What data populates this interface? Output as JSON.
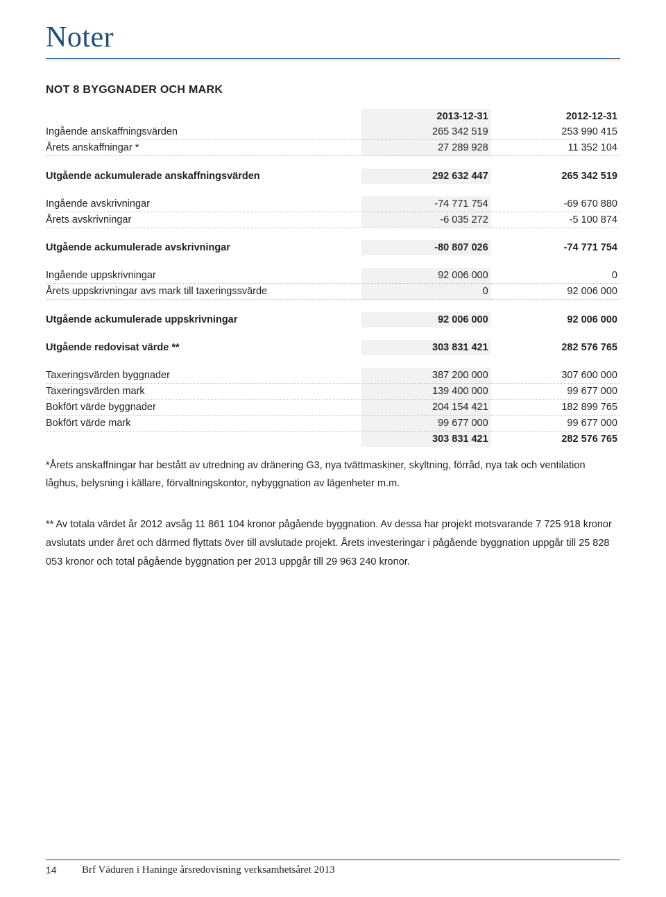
{
  "title": "Noter",
  "section_heading": "NOT 8 BYGGNADER OCH MARK",
  "headers": {
    "col1": "2013-12-31",
    "col2": "2012-12-31"
  },
  "rows": [
    {
      "label": "Ingående anskaffningsvärden",
      "c1": "265 342 519",
      "c2": "253 990 415",
      "style": "dotted"
    },
    {
      "label": "Årets anskaffningar *",
      "c1": "27 289 928",
      "c2": "11 352 104",
      "style": "dotted"
    },
    {
      "style": "spacer"
    },
    {
      "label": "Utgående ackumulerade anskaffningsvärden",
      "c1": "292 632 447",
      "c2": "265 342 519",
      "style": "bold"
    },
    {
      "style": "spacer"
    },
    {
      "label": "Ingående avskrivningar",
      "c1": "-74 771 754",
      "c2": "-69 670 880",
      "style": "dotted"
    },
    {
      "label": "Årets avskrivningar",
      "c1": "-6 035 272",
      "c2": "-5 100 874",
      "style": "dotted"
    },
    {
      "style": "spacer"
    },
    {
      "label": "Utgående ackumulerade avskrivningar",
      "c1": "-80 807 026",
      "c2": "-74 771 754",
      "style": "bold"
    },
    {
      "style": "spacer"
    },
    {
      "label": "Ingående uppskrivningar",
      "c1": "92 006 000",
      "c2": "0",
      "style": "dotted"
    },
    {
      "label": "Årets uppskrivningar avs mark till taxeringssvärde",
      "c1": "0",
      "c2": "92 006 000",
      "style": "dotted"
    },
    {
      "style": "spacer"
    },
    {
      "label": "Utgående ackumulerade uppskrivningar",
      "c1": "92 006 000",
      "c2": "92 006 000",
      "style": "bold"
    },
    {
      "style": "spacer"
    },
    {
      "label": "Utgående redovisat värde **",
      "c1": "303 831 421",
      "c2": "282 576 765",
      "style": "bold"
    },
    {
      "style": "spacer"
    },
    {
      "label": "Taxeringsvärden byggnader",
      "c1": "387 200 000",
      "c2": "307 600 000",
      "style": "dotted"
    },
    {
      "label": "Taxeringsvärden mark",
      "c1": "139 400 000",
      "c2": "99 677 000",
      "style": "dotted"
    },
    {
      "label": "Bokfört värde byggnader",
      "c1": "204 154 421",
      "c2": "182 899 765",
      "style": "dotted"
    },
    {
      "label": "Bokfört värde mark",
      "c1": "99 677 000",
      "c2": "99 677 000",
      "style": "dotted"
    },
    {
      "label": "",
      "c1": "303 831 421",
      "c2": "282 576 765",
      "style": "bold"
    }
  ],
  "paragraphs": [
    "*Årets anskaffningar har bestått av utredning av dränering G3, nya tvättmaskiner, skyltning, förråd, nya tak och ventilation låghus, belysning i källare, förvaltningskontor, nybyggnation av lägenheter m.m.",
    "** Av totala värdet år 2012 avsåg 11 861 104 kronor pågående byggnation. Av dessa har projekt motsvarande 7 725 918 kronor avslutats under året och därmed flyttats över till avslutade projekt. Årets investeringar i pågående byggnation uppgår till 25 828 053 kronor och total pågående byggnation per 2013 uppgår till 29 963 240 kronor."
  ],
  "footer": {
    "page_number": "14",
    "text": "Brf Väduren i Haninge årsredovisning verksamhetsåret 2013"
  }
}
